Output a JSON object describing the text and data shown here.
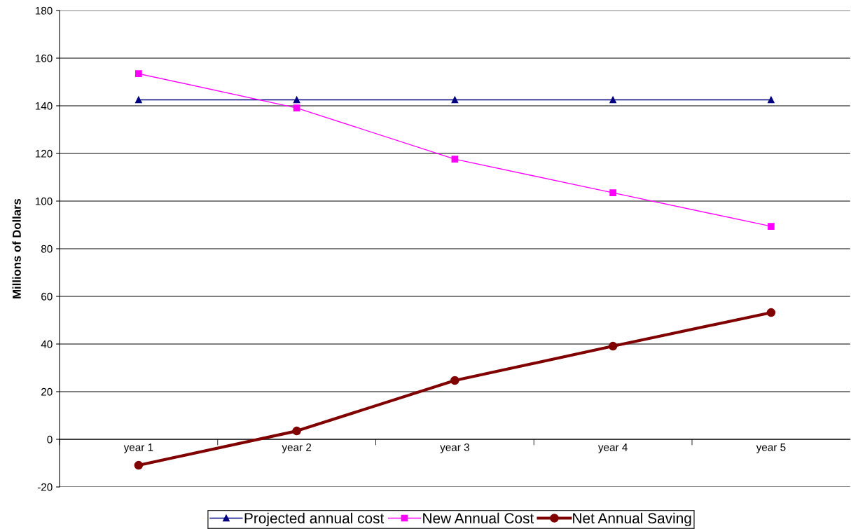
{
  "chart_data": {
    "type": "line",
    "ylabel": "Millions of Dollars",
    "categories": [
      "year 1",
      "year 2",
      "year 3",
      "year 4",
      "year 5"
    ],
    "series": [
      {
        "name": "Projected annual cost",
        "color": "#000080",
        "marker": "triangle",
        "values": [
          142.5,
          142.5,
          142.5,
          142.5,
          142.5
        ]
      },
      {
        "name": "New Annual Cost",
        "color": "#ff00ff",
        "marker": "square",
        "values": [
          153.5,
          139.1,
          117.6,
          103.5,
          89.4
        ]
      },
      {
        "name": "Net Annual Saving",
        "color": "#800000",
        "marker": "circle",
        "values": [
          -10.9,
          3.5,
          24.7,
          39.1,
          53.2
        ]
      }
    ],
    "ylim": [
      -20,
      180
    ],
    "yticks": [
      -20,
      0,
      20,
      40,
      60,
      80,
      100,
      120,
      140,
      160,
      180
    ],
    "grid": "y",
    "legend": "bottom",
    "line_style": "solid"
  }
}
